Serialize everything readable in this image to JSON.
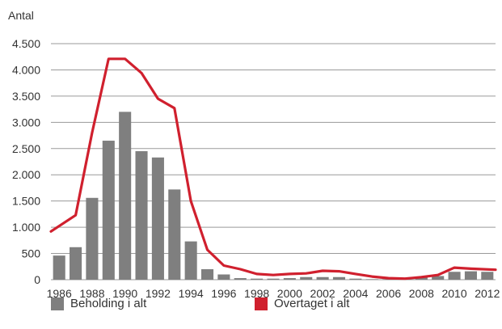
{
  "chart_data": {
    "type": "bar",
    "ylabel": "Antal",
    "xlabel": "",
    "ylim": [
      0,
      4500
    ],
    "yticks": [
      0,
      500,
      1000,
      1500,
      2000,
      2500,
      3000,
      3500,
      4000,
      4500
    ],
    "ytick_labels": [
      "0",
      "500",
      "1.000",
      "1.500",
      "2.000",
      "2.500",
      "3.000",
      "3.500",
      "4.000",
      "4.500"
    ],
    "categories": [
      "1986",
      "1987",
      "1988",
      "1989",
      "1990",
      "1991",
      "1992",
      "1993",
      "1994",
      "1995",
      "1996",
      "1997",
      "1998",
      "1999",
      "2000",
      "2001",
      "2002",
      "2003",
      "2004",
      "2005",
      "2006",
      "2007",
      "2008",
      "2009",
      "2010",
      "2011",
      "2012"
    ],
    "xtick_labels": [
      "1986",
      "1988",
      "1990",
      "1992",
      "1994",
      "1996",
      "1998",
      "2000",
      "2002",
      "2004",
      "2006",
      "2008",
      "2010",
      "2012"
    ],
    "grid": true,
    "legend_placement": "bottom",
    "series": [
      {
        "name": "Beholding i alt",
        "type": "bar",
        "color": "#7f7f7f",
        "values": [
          460,
          620,
          1560,
          2650,
          3200,
          2450,
          2330,
          1720,
          730,
          200,
          100,
          30,
          20,
          20,
          30,
          50,
          50,
          50,
          20,
          10,
          10,
          10,
          60,
          70,
          150,
          160,
          150
        ]
      },
      {
        "name": "Overtaget i alt",
        "type": "line",
        "color": "#d0202e",
        "values": [
          920,
          1230,
          2800,
          4210,
          4210,
          3940,
          3450,
          3270,
          1500,
          570,
          270,
          200,
          110,
          90,
          110,
          120,
          170,
          160,
          110,
          60,
          30,
          20,
          50,
          90,
          230,
          210,
          190
        ]
      }
    ]
  }
}
